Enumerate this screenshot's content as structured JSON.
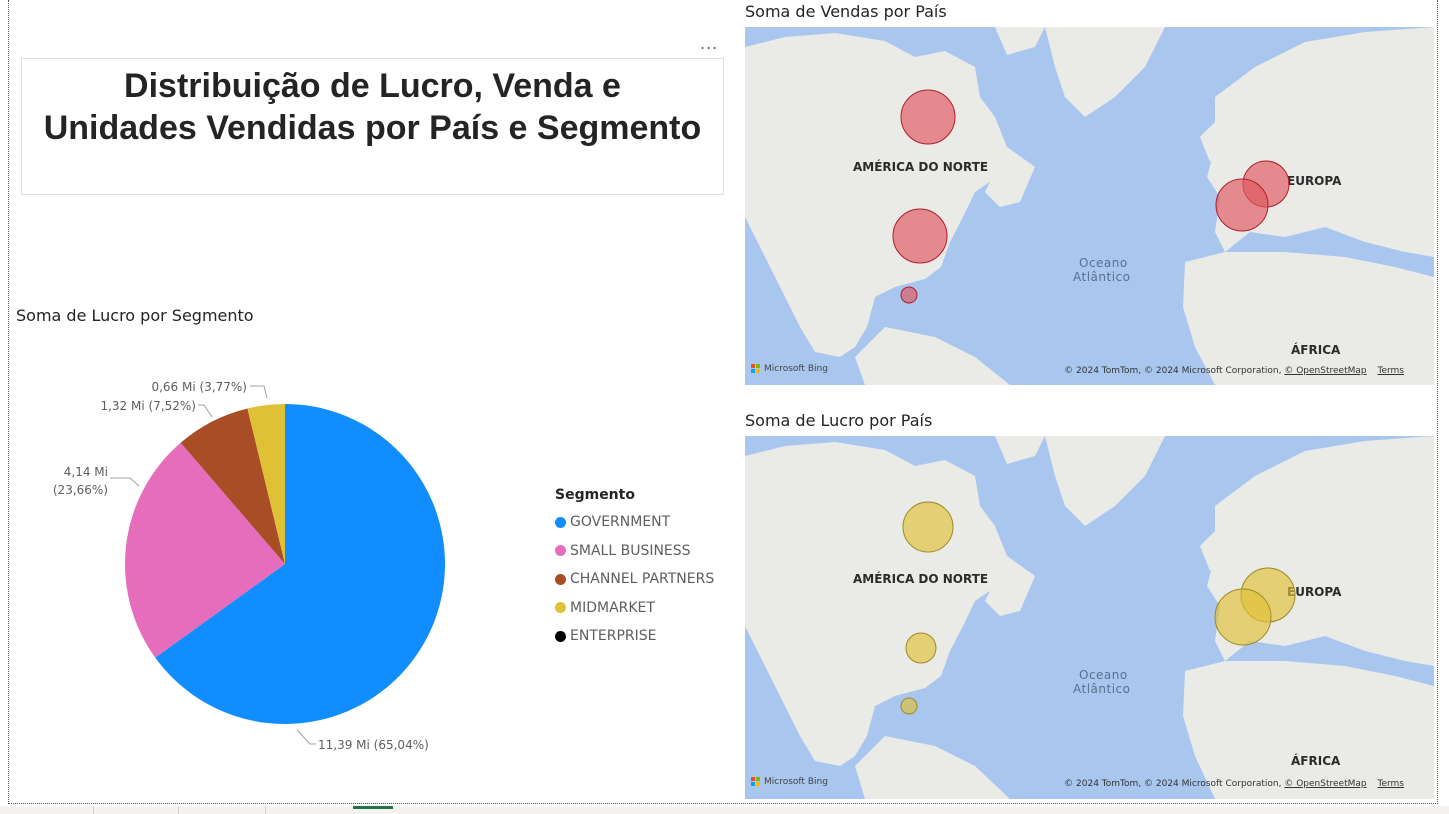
{
  "report": {
    "more_options": "...",
    "title_line1": "Distribuição de Lucro, Venda e",
    "title_line2": "Unidades Vendidas por País e Segmento"
  },
  "pie": {
    "title": "Soma de Lucro por Segmento",
    "labels": {
      "government": "11,39 Mi (65,04%)",
      "small_business_1": "4,14 Mi",
      "small_business_2": "(23,66%)",
      "channel_partners": "1,32 Mi (7,52%)",
      "midmarket": "0,66 Mi (3,77%)"
    },
    "legend": {
      "title": "Segmento",
      "items": [
        {
          "label": "GOVERNMENT",
          "color": "#118dff"
        },
        {
          "label": "SMALL BUSINESS",
          "color": "#e66cbc"
        },
        {
          "label": "CHANNEL PARTNERS",
          "color": "#a84d25"
        },
        {
          "label": "MIDMARKET",
          "color": "#e0c035"
        },
        {
          "label": "ENTERPRISE",
          "color": "#000000"
        }
      ]
    }
  },
  "chart_data": {
    "type": "pie",
    "title": "Soma de Lucro por Segmento",
    "categories": [
      "GOVERNMENT",
      "SMALL BUSINESS",
      "CHANNEL PARTNERS",
      "MIDMARKET",
      "ENTERPRISE"
    ],
    "values": [
      11.39,
      4.14,
      1.32,
      0.66,
      0
    ],
    "percents": [
      65.04,
      23.66,
      7.52,
      3.77,
      0
    ],
    "colors": [
      "#118dff",
      "#e66cbc",
      "#a84d25",
      "#e0c035",
      "#000000"
    ],
    "legend_position": "right"
  },
  "maps": {
    "sales": {
      "title": "Soma de Vendas por País",
      "bubble_color": "#e0565f"
    },
    "profit": {
      "title": "Soma de Lucro por País",
      "bubble_color": "#e0c035"
    },
    "labels": {
      "north_america": "AMÉRICA DO NORTE",
      "europe": "EUROPA",
      "africa": "ÁFRICA",
      "ocean_1": "Oceano",
      "ocean_2": "Atlântico"
    },
    "bing": "Microsoft Bing",
    "attribution": "© 2024 TomTom, © 2024 Microsoft Corporation,",
    "osm": "© OpenStreetMap",
    "terms": "Terms"
  }
}
